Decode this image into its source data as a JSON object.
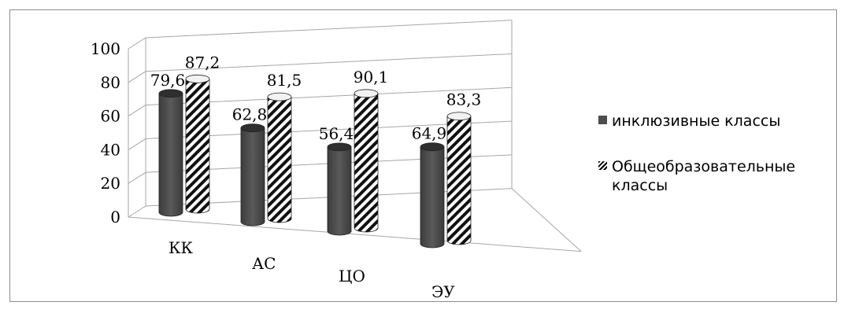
{
  "chart_data": {
    "type": "bar",
    "style": "3d-cylinder",
    "categories": [
      "КК",
      "АС",
      "ЦО",
      "ЭУ"
    ],
    "series": [
      {
        "name": "инклюзивные классы",
        "values": [
          79.6,
          62.8,
          56.4,
          64.9
        ],
        "labels": [
          "79,6",
          "62,8",
          "56,4",
          "64,9"
        ],
        "fill": "solid-dark-gray"
      },
      {
        "name": "Общеобразовательные классы",
        "values": [
          87.2,
          81.5,
          90.1,
          83.3
        ],
        "labels": [
          "87,2",
          "81,5",
          "90,1",
          "83,3"
        ],
        "fill": "diagonal-hatch"
      }
    ],
    "y_ticks": [
      "0",
      "20",
      "40",
      "60",
      "80",
      "100"
    ],
    "ylim": [
      0,
      100
    ],
    "grid": true,
    "legend_position": "right"
  },
  "colors": {
    "solid_series": "#4d4d4d",
    "hatch_series": "#000000",
    "gridline": "#a6a6a6",
    "frame": "#8c8c8c"
  }
}
